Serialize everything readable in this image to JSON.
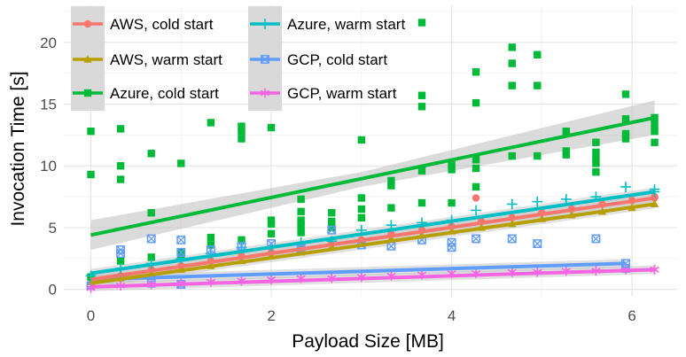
{
  "chart_data": {
    "type": "scatter",
    "title": "",
    "xlabel": "Payload Size [MB]",
    "ylabel": "Invocation Time [s]",
    "xlim": [
      -0.3,
      6.5
    ],
    "ylim": [
      -0.6,
      23.0
    ],
    "xticks": [
      "0",
      "2",
      "4",
      "6"
    ],
    "xtick_values": [
      0,
      2,
      4,
      6
    ],
    "yticks": [
      "0",
      "5",
      "10",
      "15",
      "20"
    ],
    "ytick_values": [
      0,
      5,
      10,
      15,
      20
    ],
    "grid": true,
    "legend_position": "top-left, inside, two columns",
    "series": [
      {
        "name": "AWS, cold start",
        "color": "#F8766D",
        "marker": "circle",
        "points": [
          [
            0,
            0.9
          ],
          [
            0.33,
            1.1
          ],
          [
            0.67,
            1.6
          ],
          [
            1.0,
            1.9
          ],
          [
            1.33,
            2.3
          ],
          [
            1.67,
            2.7
          ],
          [
            2.0,
            3.0
          ],
          [
            2.33,
            3.4
          ],
          [
            2.67,
            3.7
          ],
          [
            3.0,
            4.0
          ],
          [
            3.33,
            4.5
          ],
          [
            3.67,
            4.8
          ],
          [
            4.0,
            5.1
          ],
          [
            4.27,
            7.4
          ],
          [
            4.33,
            5.5
          ],
          [
            4.67,
            5.8
          ],
          [
            5.0,
            6.2
          ],
          [
            5.33,
            6.5
          ],
          [
            5.67,
            6.9
          ],
          [
            6.0,
            7.2
          ],
          [
            6.25,
            7.5
          ]
        ],
        "trend": [
          [
            0,
            0.8
          ],
          [
            6.25,
            7.4
          ]
        ]
      },
      {
        "name": "AWS, warm start",
        "color": "#B79F00",
        "marker": "triangle",
        "points": [
          [
            0,
            0.6
          ],
          [
            0.33,
            0.9
          ],
          [
            0.67,
            1.2
          ],
          [
            1.0,
            1.6
          ],
          [
            1.33,
            1.9
          ],
          [
            1.67,
            2.3
          ],
          [
            2.0,
            2.7
          ],
          [
            2.33,
            3.0
          ],
          [
            2.67,
            3.4
          ],
          [
            3.0,
            3.7
          ],
          [
            3.33,
            4.1
          ],
          [
            3.67,
            4.4
          ],
          [
            4.0,
            4.7
          ],
          [
            4.33,
            5.0
          ],
          [
            4.67,
            5.3
          ],
          [
            5.0,
            5.7
          ],
          [
            5.33,
            6.0
          ],
          [
            5.67,
            6.3
          ],
          [
            6.0,
            6.6
          ],
          [
            6.25,
            6.9
          ]
        ],
        "trend": [
          [
            0,
            0.5
          ],
          [
            6.25,
            6.9
          ]
        ]
      },
      {
        "name": "Azure, cold start",
        "color": "#00BA38",
        "marker": "square",
        "points": [
          [
            0,
            12.8
          ],
          [
            0,
            9.3
          ],
          [
            0,
            1.0
          ],
          [
            0.33,
            13.0
          ],
          [
            0.33,
            10.0
          ],
          [
            0.33,
            8.9
          ],
          [
            0.33,
            2.3
          ],
          [
            0.67,
            11.0
          ],
          [
            0.67,
            6.2
          ],
          [
            0.67,
            2.6
          ],
          [
            1.0,
            10.2
          ],
          [
            1.0,
            3.0
          ],
          [
            1.0,
            2.6
          ],
          [
            1.33,
            13.5
          ],
          [
            1.33,
            4.2
          ],
          [
            1.33,
            3.6
          ],
          [
            1.67,
            13.2
          ],
          [
            1.67,
            12.8
          ],
          [
            1.67,
            12.2
          ],
          [
            1.67,
            4.0
          ],
          [
            2.0,
            13.1
          ],
          [
            2.0,
            5.6
          ],
          [
            2.0,
            5.3
          ],
          [
            2.0,
            4.5
          ],
          [
            2.33,
            7.3
          ],
          [
            2.33,
            6.3
          ],
          [
            2.33,
            5.6
          ],
          [
            2.33,
            5.1
          ],
          [
            2.33,
            4.6
          ],
          [
            2.67,
            6.2
          ],
          [
            2.67,
            5.5
          ],
          [
            2.67,
            5.0
          ],
          [
            3.0,
            12.1
          ],
          [
            3.0,
            7.4
          ],
          [
            3.0,
            6.5
          ],
          [
            3.0,
            5.8
          ],
          [
            3.33,
            8.8
          ],
          [
            3.33,
            8.4
          ],
          [
            3.33,
            6.6
          ],
          [
            3.67,
            21.6
          ],
          [
            3.67,
            15.7
          ],
          [
            3.67,
            14.8
          ],
          [
            3.67,
            9.6
          ],
          [
            3.67,
            7.0
          ],
          [
            4.0,
            10.1
          ],
          [
            4.0,
            9.7
          ],
          [
            4.0,
            7.0
          ],
          [
            4.27,
            17.6
          ],
          [
            4.27,
            15.1
          ],
          [
            4.27,
            10.5
          ],
          [
            4.27,
            9.8
          ],
          [
            4.27,
            8.3
          ],
          [
            4.67,
            19.6
          ],
          [
            4.67,
            18.3
          ],
          [
            4.67,
            16.5
          ],
          [
            4.67,
            10.8
          ],
          [
            4.95,
            19.0
          ],
          [
            4.95,
            16.5
          ],
          [
            4.95,
            10.8
          ],
          [
            5.27,
            12.8
          ],
          [
            5.27,
            11.2
          ],
          [
            5.27,
            10.9
          ],
          [
            5.6,
            11.9
          ],
          [
            5.6,
            11.1
          ],
          [
            5.6,
            10.6
          ],
          [
            5.6,
            10.2
          ],
          [
            5.6,
            9.5
          ],
          [
            5.93,
            15.8
          ],
          [
            5.93,
            13.8
          ],
          [
            5.93,
            12.6
          ],
          [
            5.93,
            12.2
          ],
          [
            6.25,
            13.3
          ],
          [
            6.25,
            12.8
          ],
          [
            6.25,
            11.9
          ]
        ],
        "trend": [
          [
            0,
            4.4
          ],
          [
            6.25,
            13.9
          ]
        ],
        "band": [
          [
            0,
            3.2,
            5.6
          ],
          [
            3.0,
            8.3,
            9.5
          ],
          [
            6.25,
            12.5,
            15.3
          ]
        ]
      },
      {
        "name": "Azure, warm start",
        "color": "#00BFC4",
        "marker": "plus",
        "points": [
          [
            0,
            1.1
          ],
          [
            0.33,
            1.7
          ],
          [
            0.67,
            2.1
          ],
          [
            1.0,
            2.5
          ],
          [
            1.33,
            2.9
          ],
          [
            1.67,
            3.4
          ],
          [
            2.0,
            3.4
          ],
          [
            2.33,
            3.8
          ],
          [
            2.67,
            3.9
          ],
          [
            3.0,
            4.8
          ],
          [
            3.33,
            5.2
          ],
          [
            3.67,
            5.4
          ],
          [
            4.0,
            5.6
          ],
          [
            4.27,
            6.4
          ],
          [
            4.67,
            6.9
          ],
          [
            4.95,
            7.1
          ],
          [
            5.27,
            7.3
          ],
          [
            5.6,
            7.5
          ],
          [
            5.93,
            8.3
          ],
          [
            6.25,
            8.1
          ]
        ],
        "trend": [
          [
            0,
            1.3
          ],
          [
            6.25,
            7.9
          ]
        ]
      },
      {
        "name": "GCP, cold start",
        "color": "#619CFF",
        "marker": "square-cross",
        "points": [
          [
            0,
            0.3
          ],
          [
            0.33,
            3.2
          ],
          [
            0.33,
            2.9
          ],
          [
            0.67,
            4.1
          ],
          [
            0.67,
            0.5
          ],
          [
            1.0,
            4.0
          ],
          [
            1.0,
            3.0
          ],
          [
            1.0,
            0.4
          ],
          [
            1.33,
            3.2
          ],
          [
            1.67,
            3.5
          ],
          [
            2.0,
            3.7
          ],
          [
            2.33,
            3.3
          ],
          [
            2.67,
            4.8
          ],
          [
            3.0,
            3.6
          ],
          [
            3.33,
            3.5
          ],
          [
            3.67,
            4.0
          ],
          [
            4.0,
            3.8
          ],
          [
            4.0,
            3.4
          ],
          [
            4.27,
            4.1
          ],
          [
            4.67,
            4.1
          ],
          [
            4.95,
            3.7
          ],
          [
            5.6,
            4.1
          ],
          [
            5.93,
            1.7
          ]
        ],
        "trend": [
          [
            0,
            0.8
          ],
          [
            5.93,
            2.1
          ]
        ]
      },
      {
        "name": "GCP, warm start",
        "color": "#F564E3",
        "marker": "asterisk",
        "points": [
          [
            0,
            0.1
          ],
          [
            0.33,
            0.3
          ],
          [
            0.67,
            0.4
          ],
          [
            1.0,
            0.5
          ],
          [
            1.33,
            0.6
          ],
          [
            1.67,
            0.7
          ],
          [
            2.0,
            0.8
          ],
          [
            2.33,
            0.9
          ],
          [
            2.67,
            0.9
          ],
          [
            3.0,
            1.0
          ],
          [
            3.33,
            1.1
          ],
          [
            3.67,
            1.2
          ],
          [
            4.0,
            1.3
          ],
          [
            4.27,
            1.3
          ],
          [
            4.67,
            1.4
          ],
          [
            4.95,
            1.4
          ],
          [
            5.27,
            1.5
          ],
          [
            5.6,
            1.5
          ],
          [
            5.93,
            1.6
          ],
          [
            6.25,
            1.6
          ]
        ],
        "trend": [
          [
            0,
            0.2
          ],
          [
            6.25,
            1.6
          ]
        ]
      }
    ]
  }
}
